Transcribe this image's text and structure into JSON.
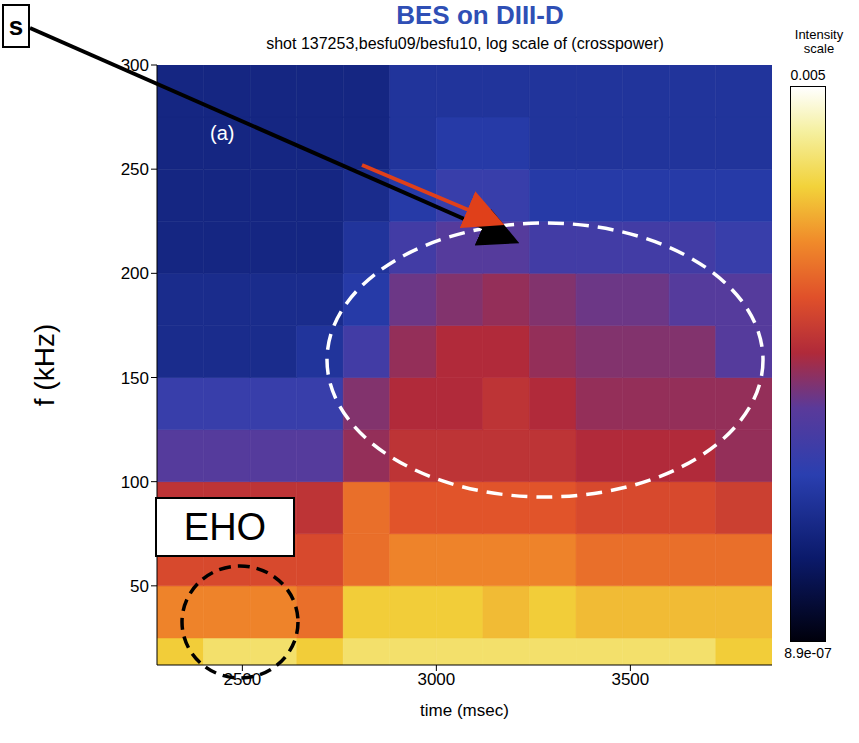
{
  "chart_data": {
    "type": "heatmap",
    "title": "BES on DIII-D",
    "subtitle": "shot 137253,besfu09/besfu10, log scale of (crosspower)",
    "x_label": "time (msec)",
    "y_label": "f (kHz)",
    "annotations": [
      "(a)",
      "EHO",
      "s"
    ],
    "xlim": [
      2280,
      3865
    ],
    "xticks": [
      2500,
      3000,
      3500
    ],
    "ylim": [
      12,
      300
    ],
    "yticks": [
      50,
      100,
      150,
      200,
      250,
      300
    ],
    "x_bins": [
      2280,
      2400,
      2520,
      2640,
      2760,
      2880,
      3000,
      3120,
      3240,
      3360,
      3480,
      3600,
      3720,
      3865
    ],
    "y_bins": [
      12,
      25,
      50,
      75,
      100,
      125,
      150,
      175,
      200,
      225,
      250,
      275,
      300
    ],
    "cells": [
      [
        0.001,
        0.0016,
        0.0016,
        0.001,
        0.0016,
        0.0016,
        0.0016,
        0.0016,
        0.0016,
        0.0016,
        0.0016,
        0.0016,
        0.001
      ],
      [
        0.0004,
        0.0004,
        0.0004,
        0.0003,
        0.001,
        0.001,
        0.001,
        0.0008,
        0.001,
        0.0008,
        0.0008,
        0.0008,
        0.0008
      ],
      [
        0.00016,
        0.00016,
        0.00016,
        0.00016,
        0.0003,
        0.0004,
        0.0004,
        0.0004,
        0.0004,
        0.0003,
        0.0003,
        0.0003,
        0.0003
      ],
      [
        0.0001,
        0.0001,
        0.0001,
        0.0001,
        0.0003,
        0.0002,
        0.0002,
        0.0002,
        0.0002,
        0.00016,
        0.00016,
        0.00016,
        0.00013
      ],
      [
        3e-05,
        3e-05,
        3e-05,
        3e-05,
        6e-05,
        0.0001,
        0.0001,
        0.0001,
        0.0001,
        8e-05,
        8e-05,
        8e-05,
        6e-05
      ],
      [
        1.6e-05,
        1.6e-05,
        1.6e-05,
        1.6e-05,
        5e-05,
        8e-05,
        8e-05,
        0.0001,
        8e-05,
        6e-05,
        6e-05,
        6e-05,
        6e-05
      ],
      [
        6e-06,
        6e-06,
        6e-06,
        8e-06,
        2e-05,
        6e-05,
        8e-05,
        8e-05,
        6e-05,
        5e-05,
        5e-05,
        5e-05,
        3e-05
      ],
      [
        6e-06,
        6e-06,
        6e-06,
        6e-06,
        1e-05,
        4e-05,
        5e-05,
        6e-05,
        5e-05,
        4e-05,
        4e-05,
        3e-05,
        3e-05
      ],
      [
        5e-06,
        5e-06,
        5e-06,
        5e-06,
        8e-06,
        2e-05,
        3e-05,
        3e-05,
        2e-05,
        2e-05,
        2e-05,
        2e-05,
        1.6e-05
      ],
      [
        5e-06,
        5e-06,
        5e-06,
        5e-06,
        6e-06,
        1e-05,
        1.6e-05,
        1.6e-05,
        1e-05,
        1e-05,
        1e-05,
        1e-05,
        1e-05
      ],
      [
        5e-06,
        5e-06,
        5e-06,
        5e-06,
        5e-06,
        8e-06,
        1e-05,
        1e-05,
        8e-06,
        8e-06,
        8e-06,
        8e-06,
        8e-06
      ],
      [
        5e-06,
        5e-06,
        5e-06,
        5e-06,
        5e-06,
        8e-06,
        8e-06,
        8e-06,
        8e-06,
        8e-06,
        8e-06,
        8e-06,
        8e-06
      ]
    ],
    "colorbar": {
      "label": "Intensity scale",
      "range": [
        8.9e-07,
        0.005
      ],
      "ticks": [
        0.005,
        {
          "value": 8.9e-07,
          "label": "8.9e-07"
        }
      ]
    }
  }
}
